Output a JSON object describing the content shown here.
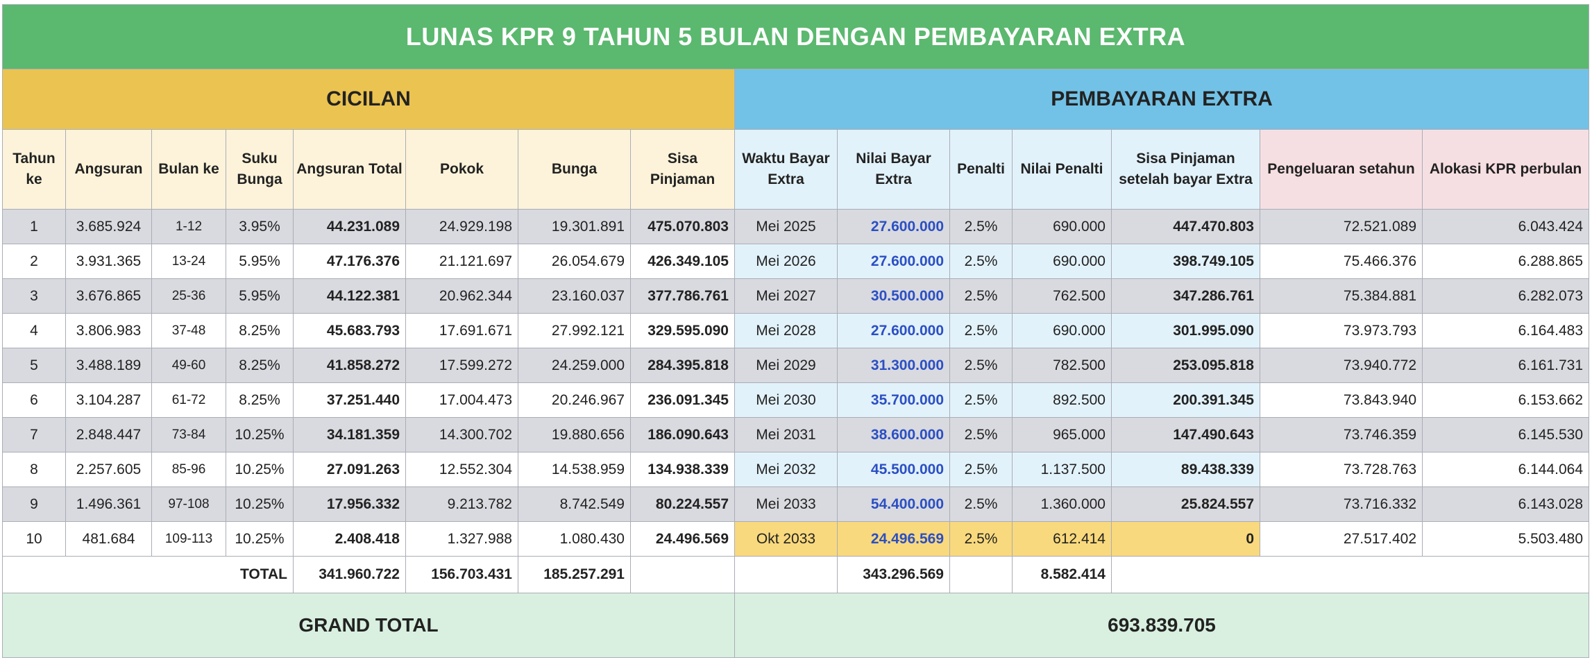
{
  "title": "LUNAS KPR 9 TAHUN 5 BULAN DENGAN PEMBAYARAN EXTRA",
  "sections": {
    "cicilan": "CICILAN",
    "extra": "PEMBAYARAN EXTRA"
  },
  "headers": {
    "tahun": "Tahun ke",
    "angsuran": "Angsuran",
    "bulan": "Bulan ke",
    "suku": "Suku Bunga",
    "total": "Angsuran Total",
    "pokok": "Pokok",
    "bunga": "Bunga",
    "sisa": "Sisa Pinjaman",
    "waktu": "Waktu Bayar Extra",
    "nilai": "Nilai Bayar Extra",
    "penalti": "Penalti",
    "nilai_penalti": "Nilai Penalti",
    "sisa_setelah": "Sisa Pinjaman setelah bayar Extra",
    "pengeluaran": "Pengeluaran setahun",
    "alokasi": "Alokasi KPR perbulan"
  },
  "rows": [
    {
      "tahun": "1",
      "angsuran": "3.685.924",
      "bulan": "1-12",
      "suku": "3.95%",
      "total": "44.231.089",
      "pokok": "24.929.198",
      "bunga": "19.301.891",
      "sisa": "475.070.803",
      "waktu": "Mei 2025",
      "nilai": "27.600.000",
      "penalti": "2.5%",
      "nilai_penalti": "690.000",
      "sisa_setelah": "447.470.803",
      "pengeluaran": "72.521.089",
      "alokasi": "6.043.424"
    },
    {
      "tahun": "2",
      "angsuran": "3.931.365",
      "bulan": "13-24",
      "suku": "5.95%",
      "total": "47.176.376",
      "pokok": "21.121.697",
      "bunga": "26.054.679",
      "sisa": "426.349.105",
      "waktu": "Mei 2026",
      "nilai": "27.600.000",
      "penalti": "2.5%",
      "nilai_penalti": "690.000",
      "sisa_setelah": "398.749.105",
      "pengeluaran": "75.466.376",
      "alokasi": "6.288.865"
    },
    {
      "tahun": "3",
      "angsuran": "3.676.865",
      "bulan": "25-36",
      "suku": "5.95%",
      "total": "44.122.381",
      "pokok": "20.962.344",
      "bunga": "23.160.037",
      "sisa": "377.786.761",
      "waktu": "Mei 2027",
      "nilai": "30.500.000",
      "penalti": "2.5%",
      "nilai_penalti": "762.500",
      "sisa_setelah": "347.286.761",
      "pengeluaran": "75.384.881",
      "alokasi": "6.282.073"
    },
    {
      "tahun": "4",
      "angsuran": "3.806.983",
      "bulan": "37-48",
      "suku": "8.25%",
      "total": "45.683.793",
      "pokok": "17.691.671",
      "bunga": "27.992.121",
      "sisa": "329.595.090",
      "waktu": "Mei 2028",
      "nilai": "27.600.000",
      "penalti": "2.5%",
      "nilai_penalti": "690.000",
      "sisa_setelah": "301.995.090",
      "pengeluaran": "73.973.793",
      "alokasi": "6.164.483"
    },
    {
      "tahun": "5",
      "angsuran": "3.488.189",
      "bulan": "49-60",
      "suku": "8.25%",
      "total": "41.858.272",
      "pokok": "17.599.272",
      "bunga": "24.259.000",
      "sisa": "284.395.818",
      "waktu": "Mei 2029",
      "nilai": "31.300.000",
      "penalti": "2.5%",
      "nilai_penalti": "782.500",
      "sisa_setelah": "253.095.818",
      "pengeluaran": "73.940.772",
      "alokasi": "6.161.731"
    },
    {
      "tahun": "6",
      "angsuran": "3.104.287",
      "bulan": "61-72",
      "suku": "8.25%",
      "total": "37.251.440",
      "pokok": "17.004.473",
      "bunga": "20.246.967",
      "sisa": "236.091.345",
      "waktu": "Mei 2030",
      "nilai": "35.700.000",
      "penalti": "2.5%",
      "nilai_penalti": "892.500",
      "sisa_setelah": "200.391.345",
      "pengeluaran": "73.843.940",
      "alokasi": "6.153.662"
    },
    {
      "tahun": "7",
      "angsuran": "2.848.447",
      "bulan": "73-84",
      "suku": "10.25%",
      "total": "34.181.359",
      "pokok": "14.300.702",
      "bunga": "19.880.656",
      "sisa": "186.090.643",
      "waktu": "Mei 2031",
      "nilai": "38.600.000",
      "penalti": "2.5%",
      "nilai_penalti": "965.000",
      "sisa_setelah": "147.490.643",
      "pengeluaran": "73.746.359",
      "alokasi": "6.145.530"
    },
    {
      "tahun": "8",
      "angsuran": "2.257.605",
      "bulan": "85-96",
      "suku": "10.25%",
      "total": "27.091.263",
      "pokok": "12.552.304",
      "bunga": "14.538.959",
      "sisa": "134.938.339",
      "waktu": "Mei 2032",
      "nilai": "45.500.000",
      "penalti": "2.5%",
      "nilai_penalti": "1.137.500",
      "sisa_setelah": "89.438.339",
      "pengeluaran": "73.728.763",
      "alokasi": "6.144.064"
    },
    {
      "tahun": "9",
      "angsuran": "1.496.361",
      "bulan": "97-108",
      "suku": "10.25%",
      "total": "17.956.332",
      "pokok": "9.213.782",
      "bunga": "8.742.549",
      "sisa": "80.224.557",
      "waktu": "Mei 2033",
      "nilai": "54.400.000",
      "penalti": "2.5%",
      "nilai_penalti": "1.360.000",
      "sisa_setelah": "25.824.557",
      "pengeluaran": "73.716.332",
      "alokasi": "6.143.028"
    },
    {
      "tahun": "10",
      "angsuran": "481.684",
      "bulan": "109-113",
      "suku": "10.25%",
      "total": "2.408.418",
      "pokok": "1.327.988",
      "bunga": "1.080.430",
      "sisa": "24.496.569",
      "waktu": "Okt 2033",
      "nilai": "24.496.569",
      "penalti": "2.5%",
      "nilai_penalti": "612.414",
      "sisa_setelah": "0",
      "pengeluaran": "27.517.402",
      "alokasi": "5.503.480"
    }
  ],
  "totals": {
    "label": "TOTAL",
    "total": "341.960.722",
    "pokok": "156.703.431",
    "bunga": "185.257.291",
    "nilai": "343.296.569",
    "nilai_penalti": "8.582.414"
  },
  "grand": {
    "label": "GRAND TOTAL",
    "value": "693.839.705"
  },
  "colors": {
    "title_bg": "#5bb86f",
    "cicilan_bg": "#ebc350",
    "extra_bg": "#72c1e6",
    "extra_value": "#2b4fc4",
    "last_row_highlight": "#f9d97d",
    "grand_bg": "#d9f0e0"
  }
}
